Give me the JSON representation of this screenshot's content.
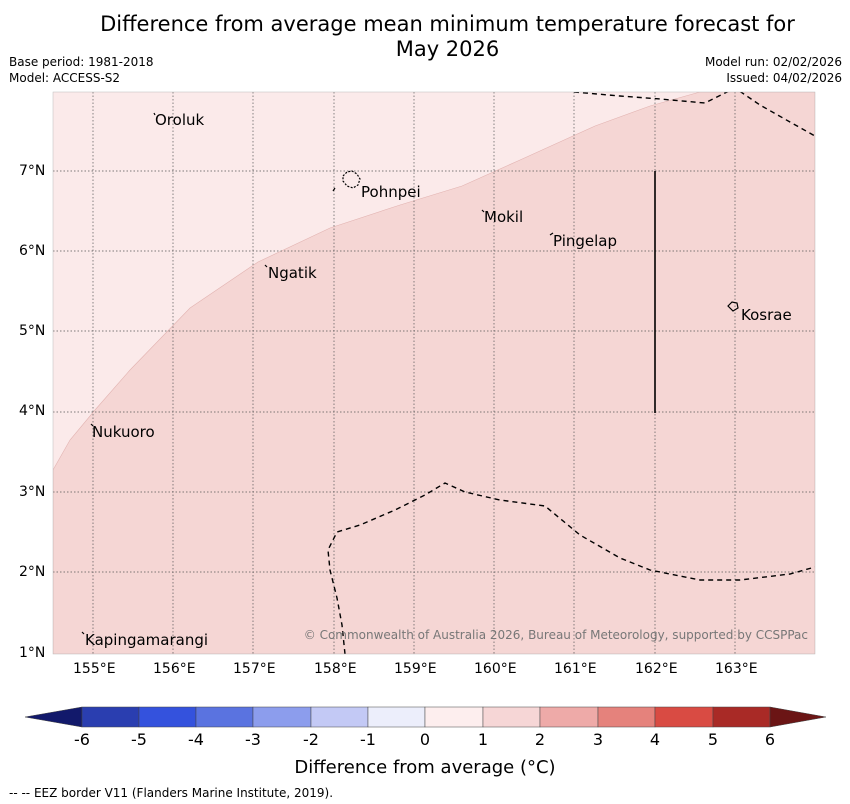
{
  "title_line1": "Difference from average mean minimum temperature forecast for",
  "title_line2": "May 2026",
  "base_period": "Base period: 1981-2018",
  "model": "Model: ACCESS-S2",
  "model_run": "Model run: 02/02/2026",
  "issued": "Issued: 04/02/2026",
  "longitudes": [
    "155°E",
    "156°E",
    "157°E",
    "158°E",
    "159°E",
    "160°E",
    "161°E",
    "162°E",
    "163°E"
  ],
  "latitudes": [
    "7°N",
    "6°N",
    "5°N",
    "4°N",
    "3°N",
    "2°N",
    "1°N"
  ],
  "places": {
    "oroluk": "Oroluk",
    "pohnpei": "Pohnpei",
    "mokil": "Mokil",
    "pingelap": "Pingelap",
    "ngatik": "Ngatik",
    "kosrae": "Kosrae",
    "nukuoro": "Nukuoro",
    "kapingamarangi": "Kapingamarangi"
  },
  "copyright": "© Commonwealth of Australia 2026, Bureau of Meteorology, supported by CCSPPac",
  "colorbar": {
    "ticks": [
      "-6",
      "-5",
      "-4",
      "-3",
      "-2",
      "-1",
      "0",
      "1",
      "2",
      "3",
      "4",
      "5",
      "6"
    ],
    "colors": [
      "#12196b",
      "#2a3eb0",
      "#3452dd",
      "#5a73e0",
      "#8c9ded",
      "#c3c9f5",
      "#eceefb",
      "#fdeeee",
      "#f6d6d6",
      "#eeaaa8",
      "#e5827c",
      "#d94b43",
      "#a92a26",
      "#6b1515"
    ],
    "label": "Difference from average (°C)"
  },
  "footer": "-- -- EEZ border V11 (Flanders Marine Institute, 2019).",
  "map_fills": {
    "light": "#fbeaea",
    "medium": "#f5d6d4"
  }
}
